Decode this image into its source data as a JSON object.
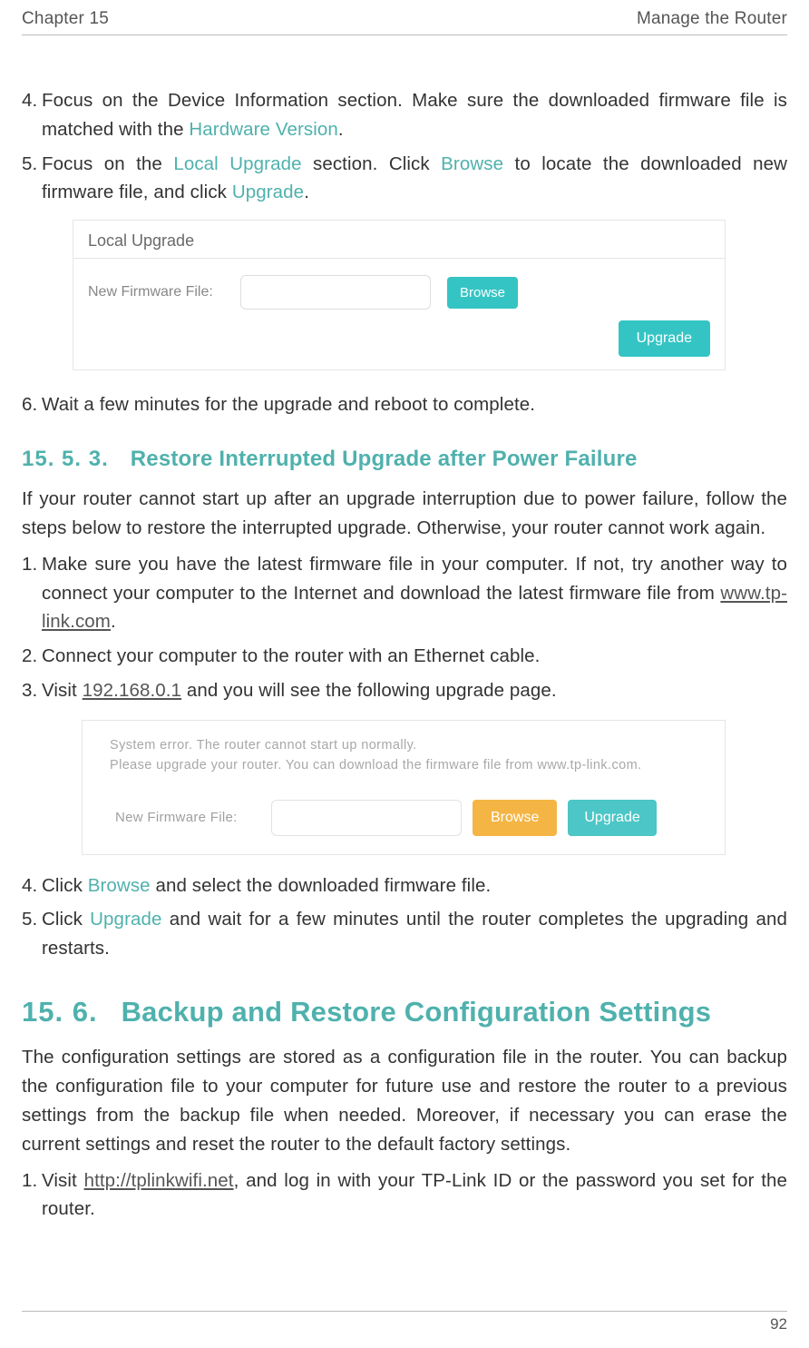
{
  "header": {
    "left": "Chapter 15",
    "right": "Manage the Router"
  },
  "steps_a": [
    {
      "num": "4.",
      "pre": "Focus on the Device Information section. Make sure the downloaded firmware file is matched with the ",
      "t1": "Hardware Version",
      "post": "."
    },
    {
      "num": "5.",
      "pre": "Focus on the ",
      "t1": "Local Upgrade",
      "mid1": " section. Click ",
      "t2": "Browse",
      "mid2": " to locate the downloaded new firmware file, and click ",
      "t3": "Upgrade",
      "post": "."
    }
  ],
  "fig1": {
    "title": "Local Upgrade",
    "label": "New Firmware File:",
    "browse": "Browse",
    "upgrade": "Upgrade"
  },
  "step6": {
    "num": "6.",
    "text": "Wait a few minutes for the upgrade and reboot to complete."
  },
  "h3": {
    "num": "15. 5. 3.",
    "title": "Restore Interrupted Upgrade after Power Failure"
  },
  "para1": "If your router cannot start up after an upgrade interruption due to power failure, follow the steps below to restore the interrupted upgrade. Otherwise, your router cannot work again.",
  "steps_b": [
    {
      "num": "1.",
      "pre": "Make sure you have the latest firmware file in your computer. If not, try another way to connect your computer to the Internet and download the latest firmware file from ",
      "link": "www.tp-link.com",
      "post": "."
    },
    {
      "num": "2.",
      "text": "Connect your computer to the router with an Ethernet cable."
    },
    {
      "num": "3.",
      "pre": "Visit ",
      "link": "192.168.0.1",
      "post": " and you will see the following upgrade page."
    }
  ],
  "fig2": {
    "msg1": "System error. The router cannot start up normally.",
    "msg2": "Please upgrade your router. You can download the firmware file from www.tp-link.com.",
    "label": "New Firmware File:",
    "browse": "Browse",
    "upgrade": "Upgrade"
  },
  "steps_c": [
    {
      "num": "4.",
      "pre": "Click ",
      "t1": "Browse",
      "post": " and select the downloaded firmware file."
    },
    {
      "num": "5.",
      "pre": "Click ",
      "t1": "Upgrade",
      "post": " and wait for a few minutes until the router completes the upgrading and restarts."
    }
  ],
  "h2": {
    "num": "15. 6.",
    "title": "Backup and Restore Configuration Settings"
  },
  "para2": "The configuration settings are stored as a configuration file in the router. You can backup the configuration file to your computer for future use and restore the router to a previous settings from the backup file when needed. Moreover, if necessary you can erase the current settings and reset the router to the default factory settings.",
  "steps_d": [
    {
      "num": "1.",
      "pre": "Visit ",
      "link": "http://tplinkwifi.net",
      "post": ", and log in with your TP-Link ID or the password you set for the router."
    }
  ],
  "pagenum": "92",
  "colors": {
    "teal": "#4fb1ad",
    "btn_teal": "#35c4c4",
    "btn_orange": "#f4b544",
    "text": "#333333",
    "muted": "#888888"
  }
}
